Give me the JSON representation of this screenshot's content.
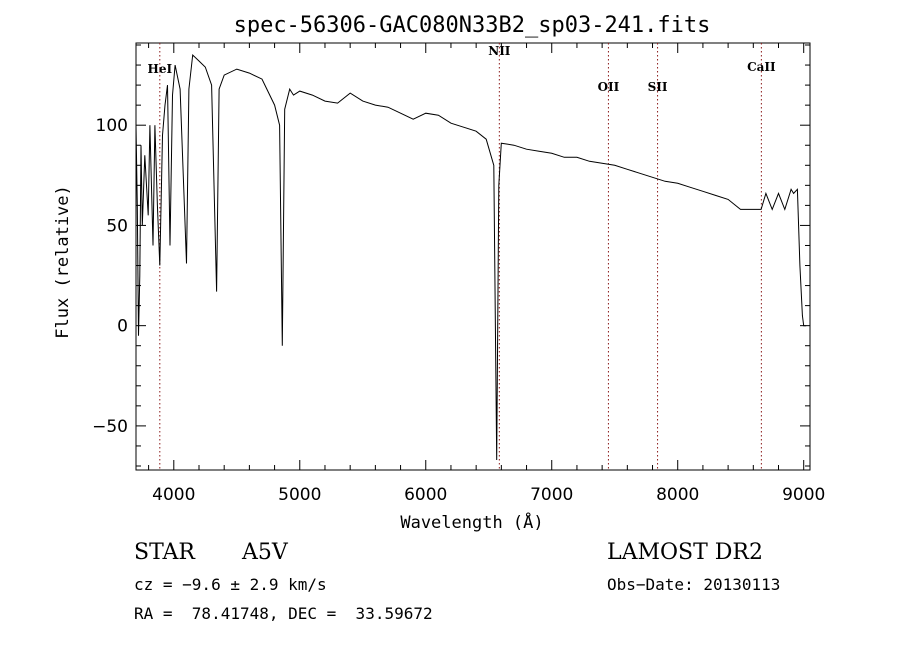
{
  "chart_data": {
    "type": "line",
    "title": "spec-56306-GAC080N33B2_sp03-241.fits",
    "xlabel": "Wavelength (Å)",
    "ylabel": "Flux (relative)",
    "xlim": [
      3700,
      9050
    ],
    "ylim": [
      -72,
      141
    ],
    "xticks": [
      4000,
      5000,
      6000,
      7000,
      8000,
      9000
    ],
    "yticks": [
      -50,
      0,
      50,
      100
    ],
    "xtick_labels": [
      "4000",
      "5000",
      "6000",
      "7000",
      "8000",
      "9000"
    ],
    "ytick_labels": [
      "−50",
      "0",
      "50",
      "100"
    ],
    "line_color": "#000000",
    "marker_color": "#8b1a1a",
    "spectral_lines": [
      {
        "name": "HeI",
        "x": 3889,
        "label_y": 126
      },
      {
        "name": "NII",
        "x": 6584,
        "label_y": 135
      },
      {
        "name": "OII",
        "x": 7450,
        "label_y": 117
      },
      {
        "name": "SII",
        "x": 7840,
        "label_y": 117
      },
      {
        "name": "CaII",
        "x": 8664,
        "label_y": 127
      }
    ],
    "series": [
      {
        "x": [
          3700,
          3710,
          3720,
          3730,
          3740,
          3750,
          3770,
          3797,
          3810,
          3835,
          3850,
          3870,
          3889,
          3910,
          3930,
          3950,
          3970,
          3990,
          4010,
          4050,
          4101,
          4120,
          4150,
          4200,
          4250,
          4300,
          4340,
          4360,
          4400,
          4500,
          4600,
          4700,
          4800,
          4840,
          4861,
          4880,
          4920,
          4950,
          5000,
          5100,
          5200,
          5300,
          5400,
          5500,
          5600,
          5700,
          5800,
          5900,
          6000,
          6100,
          6200,
          6300,
          6400,
          6480,
          6540,
          6563,
          6580,
          6600,
          6700,
          6800,
          6900,
          7000,
          7100,
          7200,
          7300,
          7400,
          7500,
          7600,
          7700,
          7800,
          7900,
          8000,
          8100,
          8200,
          8300,
          8400,
          8498,
          8542,
          8600,
          8662,
          8700,
          8750,
          8800,
          8850,
          8900,
          8920,
          8950,
          8970,
          8990,
          9000,
          9020
        ],
        "y": [
          100,
          60,
          -5,
          25,
          90,
          50,
          85,
          55,
          100,
          40,
          100,
          60,
          30,
          95,
          110,
          120,
          40,
          115,
          130,
          118,
          31,
          118,
          135,
          132,
          129,
          120,
          17,
          118,
          125,
          128,
          126,
          123,
          110,
          100,
          -10,
          108,
          118,
          115,
          117,
          115,
          112,
          111,
          116,
          112,
          110,
          109,
          106,
          103,
          106,
          105,
          101,
          99,
          97,
          93,
          80,
          -67,
          70,
          91,
          90,
          88,
          87,
          86,
          84,
          84,
          82,
          81,
          80,
          78,
          76,
          74,
          72,
          71,
          69,
          67,
          65,
          63,
          58,
          58,
          58,
          58,
          66,
          58,
          66,
          58,
          68,
          66,
          68,
          30,
          5,
          0,
          0
        ]
      }
    ]
  },
  "info": {
    "class": "STAR",
    "subclass": "A5V",
    "survey": "LAMOST DR2",
    "cz": "cz = −9.6 ± 2.9 km/s",
    "obs_date": "Obs−Date: 20130113",
    "coords": "RA =  78.41748, DEC =  33.59672"
  }
}
